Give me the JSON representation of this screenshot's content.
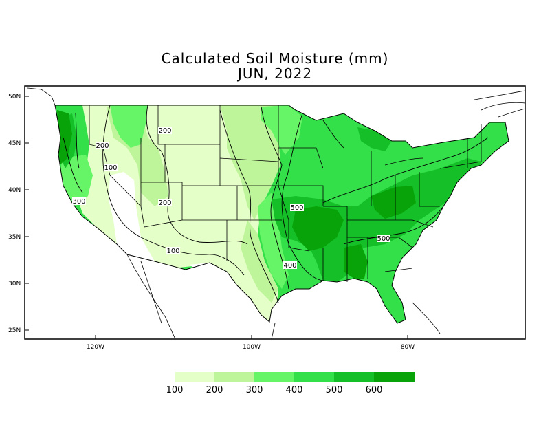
{
  "title": "Calculated Soil Moisture (mm)",
  "subtitle": "JUN, 2022",
  "map": {
    "lat_ticks": [
      "50N",
      "45N",
      "40N",
      "35N",
      "30N",
      "25N"
    ],
    "lon_ticks": [
      "120W",
      "100W",
      "80W"
    ],
    "contour_labels": [
      "200",
      "200",
      "100",
      "300",
      "200",
      "100",
      "500",
      "400",
      "500"
    ]
  },
  "legend": {
    "labels": [
      "100",
      "200",
      "300",
      "400",
      "500",
      "600"
    ],
    "colors": [
      "#e5ffc8",
      "#bff59a",
      "#66f566",
      "#33e04a",
      "#14bf28",
      "#08a308"
    ]
  },
  "colors": {
    "c0": "#ffffff",
    "c100": "#e5ffc8",
    "c200": "#bff59a",
    "c300": "#66f566",
    "c400": "#33e04a",
    "c500": "#14bf28",
    "c600": "#08a308"
  }
}
